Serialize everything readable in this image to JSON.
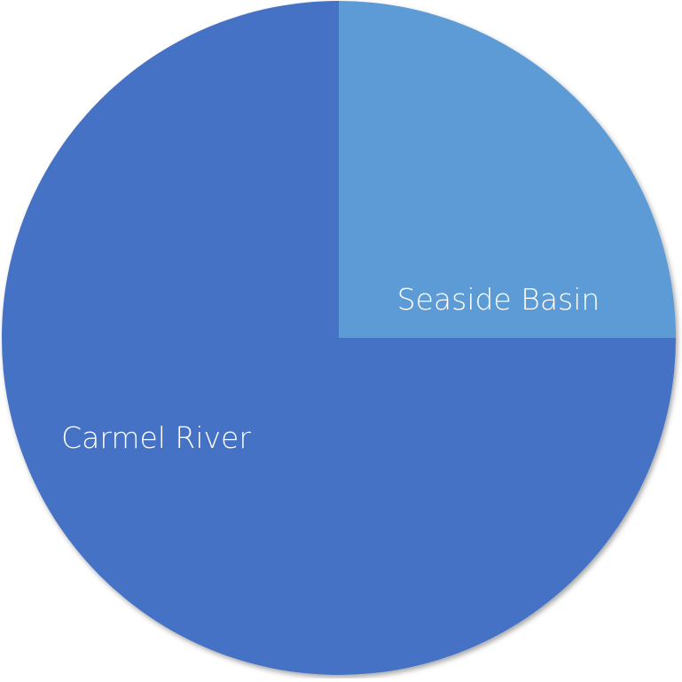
{
  "chart_data": {
    "type": "pie",
    "categories": [
      "Seaside Basin",
      "Carmel River"
    ],
    "values": [
      25,
      75
    ],
    "colors": [
      "#5b9bd5",
      "#4472c4"
    ],
    "start": "12 o'clock",
    "direction": "clockwise",
    "labels_inside": true,
    "legend": "none"
  }
}
